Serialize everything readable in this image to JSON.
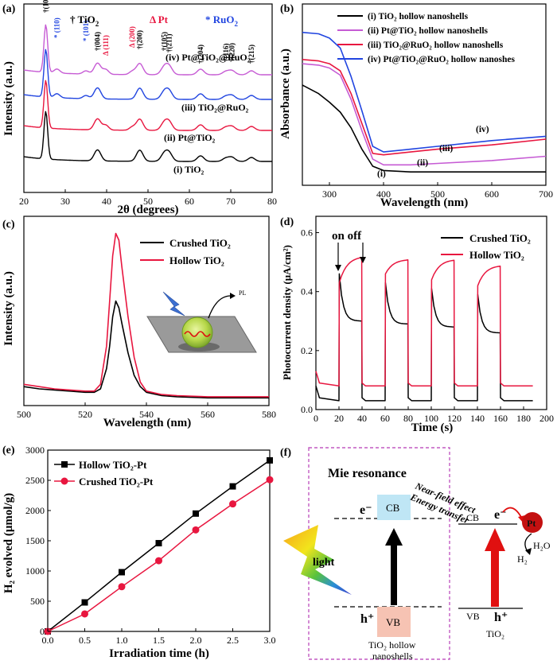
{
  "panels": {
    "a": {
      "letter": "(a)",
      "legend": {
        "tio2": "† TiO",
        "tio2_sub": "2",
        "pt": "Δ Pt",
        "ruo2": "* RuO",
        "ruo2_sub": "2"
      },
      "colors": {
        "tio2": "#000000",
        "pt": "#e8163f",
        "ruo2": "#2145e0"
      }
    },
    "b": {
      "letter": "(b)"
    },
    "c": {
      "letter": "(c)",
      "inset_label": "PL"
    },
    "d": {
      "letter": "(d)",
      "annotation": "on off"
    },
    "e": {
      "letter": "(e)"
    },
    "f": {
      "letter": "(f)",
      "title": "Mie resonance",
      "cb": "CB",
      "vb": "VB",
      "electron": "e⁻",
      "hole": "h⁺",
      "light": "light",
      "hollow_caption_1": "TiO₂ hollow",
      "hollow_caption_2": "nanoshells",
      "transfer_1": "Near-field effect",
      "transfer_2": "Energy transfer",
      "pt_label": "Pt",
      "h2o": "H₂O",
      "h2": "H₂",
      "tio2": "TiO₂",
      "colors": {
        "cb_box": "#bfe6f5",
        "vb_box": "#f6c3b3",
        "frame": "#c25ac2",
        "pt": "#e01010"
      }
    }
  },
  "chart_data": [
    {
      "panel": "a",
      "type": "line",
      "xlabel": "2θ (degrees)",
      "ylabel": "Intensity (a.u.)",
      "xlim": [
        20,
        80
      ],
      "x_ticks": [
        20,
        30,
        40,
        50,
        60,
        70,
        80
      ],
      "y_ticks_visible": false,
      "series": [
        {
          "name": "(i) TiO₂",
          "color": "#000000",
          "offset": 0
        },
        {
          "name": "(ii) Pt@TiO₂",
          "color": "#e8163f",
          "offset": 1
        },
        {
          "name": "(iii) TiO₂@RuO₂",
          "color": "#2145e0",
          "offset": 2
        },
        {
          "name": "(iv) Pt@TiO₂@RuO₂",
          "color": "#c65bd4",
          "offset": 3
        }
      ],
      "peaks": [
        {
          "x": 25.3,
          "label": "†(101)",
          "color": "#000000"
        },
        {
          "x": 28.0,
          "label": "* (110)",
          "color": "#2145e0"
        },
        {
          "x": 35.0,
          "label": "* (101)",
          "color": "#2145e0"
        },
        {
          "x": 37.8,
          "label": "†(004)",
          "color": "#000000"
        },
        {
          "x": 39.8,
          "label": "Δ (111)",
          "color": "#e8163f"
        },
        {
          "x": 46.2,
          "label": "Δ (200)",
          "color": "#e8163f"
        },
        {
          "x": 48.0,
          "label": "†(200)",
          "color": "#000000"
        },
        {
          "x": 53.9,
          "label": "†(105)",
          "color": "#000000"
        },
        {
          "x": 55.1,
          "label": "†(211)",
          "color": "#000000"
        },
        {
          "x": 62.7,
          "label": "†(204)",
          "color": "#000000"
        },
        {
          "x": 68.8,
          "label": "†(116)",
          "color": "#000000"
        },
        {
          "x": 70.3,
          "label": "†(220)",
          "color": "#000000"
        },
        {
          "x": 75.0,
          "label": "†(215)",
          "color": "#000000"
        }
      ]
    },
    {
      "panel": "b",
      "type": "line",
      "xlabel": "Wavelength (nm)",
      "ylabel": "Absorbance (a.u.)",
      "xlim": [
        250,
        700
      ],
      "x_ticks": [
        300,
        400,
        500,
        600,
        700
      ],
      "series": [
        {
          "name": "(i) TiO₂ hollow nanoshells",
          "tag": "(i)",
          "color": "#000000",
          "x": [
            250,
            280,
            300,
            320,
            340,
            360,
            380,
            400,
            450,
            500,
            600,
            700
          ],
          "y": [
            0.62,
            0.56,
            0.5,
            0.43,
            0.32,
            0.17,
            0.05,
            0.02,
            0.01,
            0.01,
            0.01,
            0.01
          ]
        },
        {
          "name": "(ii) Pt@TiO₂ hollow nanoshells",
          "tag": "(ii)",
          "color": "#c65bd4",
          "x": [
            250,
            280,
            300,
            320,
            340,
            360,
            380,
            400,
            450,
            500,
            600,
            700
          ],
          "y": [
            0.77,
            0.76,
            0.74,
            0.69,
            0.52,
            0.3,
            0.1,
            0.06,
            0.06,
            0.07,
            0.09,
            0.12
          ]
        },
        {
          "name": "(iii) TiO₂@RuO₂ hollow nanoshells",
          "tag": "(iii)",
          "color": "#e8163f",
          "x": [
            250,
            280,
            300,
            320,
            340,
            360,
            380,
            400,
            450,
            500,
            600,
            700
          ],
          "y": [
            0.8,
            0.79,
            0.77,
            0.72,
            0.56,
            0.35,
            0.14,
            0.13,
            0.15,
            0.17,
            0.2,
            0.24
          ]
        },
        {
          "name": "(iv) Pt@TiO₂@RuO₂ hollow nanoshes",
          "tag": "(iv)",
          "color": "#2145e0",
          "x": [
            250,
            280,
            300,
            320,
            340,
            360,
            380,
            400,
            450,
            500,
            600,
            700
          ],
          "y": [
            0.99,
            0.98,
            0.95,
            0.88,
            0.68,
            0.44,
            0.19,
            0.15,
            0.17,
            0.19,
            0.23,
            0.26
          ]
        }
      ]
    },
    {
      "panel": "c",
      "type": "line",
      "xlabel": "Wavelength (nm)",
      "ylabel": "Intensity (a.u.)",
      "xlim": [
        500,
        580
      ],
      "x_ticks": [
        500,
        520,
        540,
        560,
        580
      ],
      "series": [
        {
          "name": "Crushed TiO₂",
          "color": "#000000",
          "x": [
            500,
            505,
            510,
            515,
            520,
            523,
            525,
            527,
            528,
            529,
            530,
            531,
            532,
            534,
            536,
            538,
            540,
            545,
            550,
            560,
            570,
            580
          ],
          "y": [
            0.07,
            0.06,
            0.055,
            0.05,
            0.045,
            0.045,
            0.06,
            0.15,
            0.25,
            0.38,
            0.45,
            0.42,
            0.35,
            0.22,
            0.12,
            0.07,
            0.045,
            0.03,
            0.025,
            0.02,
            0.02,
            0.02
          ]
        },
        {
          "name": "Hollow TiO₂",
          "color": "#e8163f",
          "x": [
            500,
            505,
            510,
            515,
            520,
            523,
            525,
            527,
            528,
            529,
            530,
            531,
            532,
            534,
            536,
            538,
            540,
            545,
            550,
            560,
            570,
            580
          ],
          "y": [
            0.08,
            0.07,
            0.06,
            0.055,
            0.05,
            0.05,
            0.08,
            0.25,
            0.45,
            0.65,
            0.75,
            0.72,
            0.6,
            0.38,
            0.2,
            0.09,
            0.05,
            0.035,
            0.03,
            0.025,
            0.025,
            0.025
          ]
        }
      ]
    },
    {
      "panel": "d",
      "type": "line",
      "xlabel": "Time (s)",
      "ylabel": "Photocurrent density (μA/cm²)",
      "xlim": [
        0,
        200
      ],
      "ylim": [
        0,
        0.65
      ],
      "x_ticks": [
        0,
        20,
        40,
        60,
        80,
        100,
        120,
        140,
        160,
        180,
        200
      ],
      "y_ticks": [
        0.0,
        0.2,
        0.4,
        0.6
      ],
      "series": [
        {
          "name": "Crushed TiO₂",
          "color": "#000000",
          "dark": 0.03,
          "cycles": [
            [
              20,
              40,
              0.46,
              0.3
            ],
            [
              60,
              80,
              0.43,
              0.29
            ],
            [
              100,
              120,
              0.41,
              0.28
            ],
            [
              140,
              160,
              0.39,
              0.26
            ]
          ],
          "end": 188
        },
        {
          "name": "Hollow TiO₂",
          "color": "#e8163f",
          "dark": 0.08,
          "cycles": [
            [
              20,
              40,
              0.43,
              0.52
            ],
            [
              60,
              80,
              0.46,
              0.51
            ],
            [
              100,
              120,
              0.44,
              0.51
            ],
            [
              140,
              160,
              0.42,
              0.49
            ]
          ],
          "end": 188
        }
      ]
    },
    {
      "panel": "e",
      "type": "line",
      "xlabel": "Irradiation time (h)",
      "ylabel": "H₂ evolved (μmol/g)",
      "xlim": [
        0,
        3.0
      ],
      "ylim": [
        0,
        3000
      ],
      "x_ticks": [
        0.0,
        0.5,
        1.0,
        1.5,
        2.0,
        2.5,
        3.0
      ],
      "y_ticks": [
        0,
        500,
        1000,
        1500,
        2000,
        2500,
        3000
      ],
      "series": [
        {
          "name": "Hollow TiO₂-Pt",
          "color": "#000000",
          "marker": "square",
          "x": [
            0,
            0.5,
            1.0,
            1.5,
            2.0,
            2.5,
            3.0
          ],
          "y": [
            0,
            480,
            980,
            1460,
            1950,
            2400,
            2830
          ]
        },
        {
          "name": "Crushed TiO₂-Pt",
          "color": "#e8163f",
          "marker": "circle",
          "x": [
            0,
            0.5,
            1.0,
            1.5,
            2.0,
            2.5,
            3.0
          ],
          "y": [
            0,
            290,
            740,
            1170,
            1680,
            2110,
            2510
          ]
        }
      ]
    }
  ]
}
